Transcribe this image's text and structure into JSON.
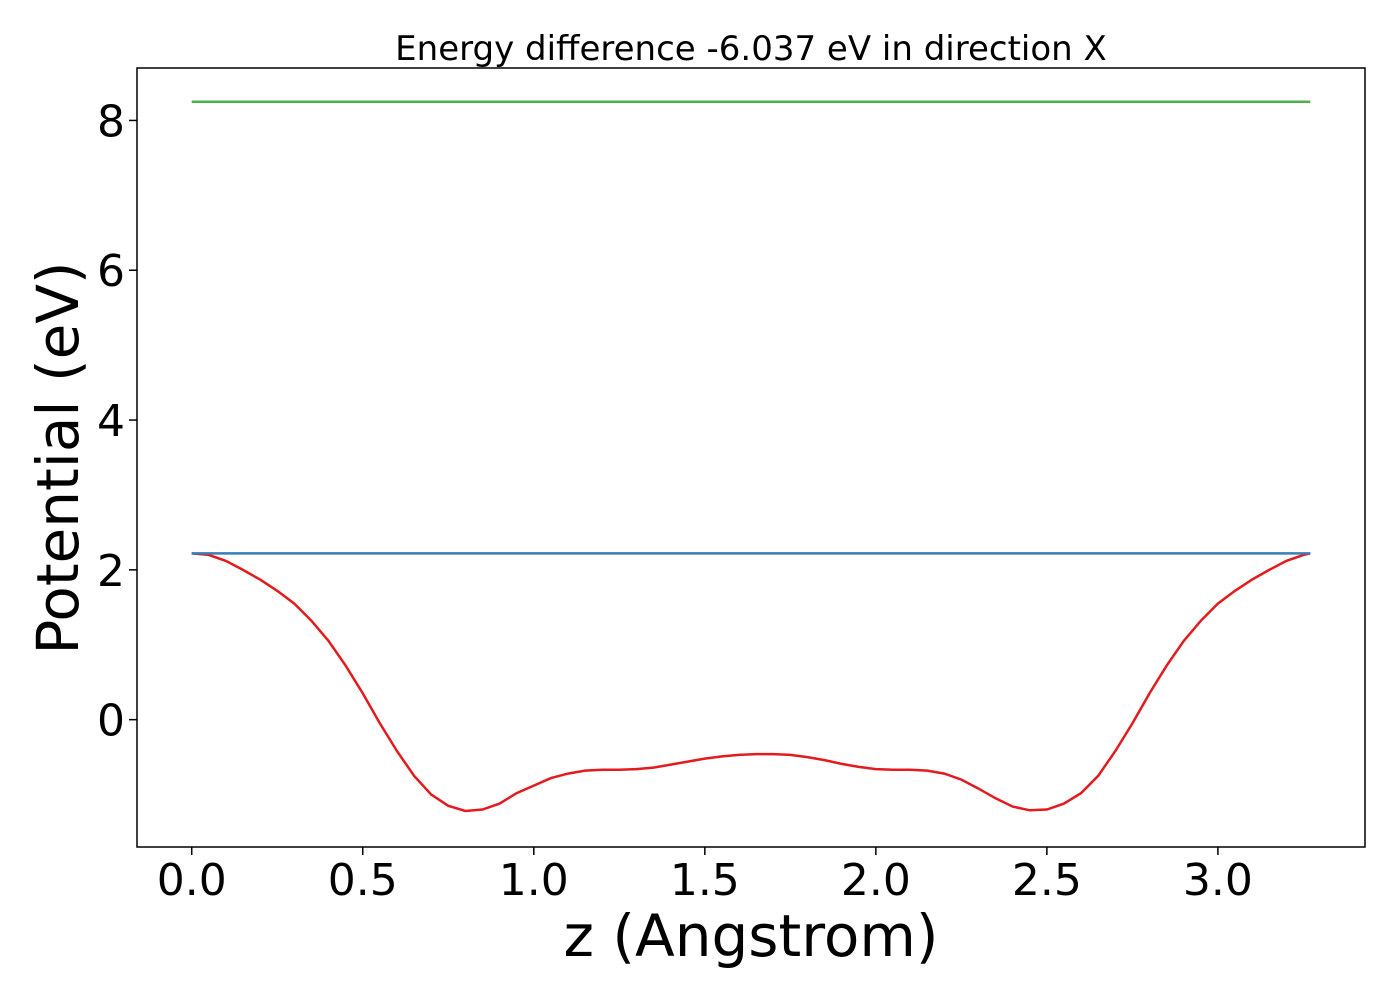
{
  "chart_data": {
    "type": "line",
    "title": "Energy difference -6.037 eV in direction X",
    "xlabel": "z (Angstrom)",
    "ylabel": "Potential (eV)",
    "xlim": [
      -0.16,
      3.43
    ],
    "ylim": [
      -1.7,
      8.7
    ],
    "x_ticks": [
      0.0,
      0.5,
      1.0,
      1.5,
      2.0,
      2.5,
      3.0
    ],
    "x_tick_labels": [
      "0.0",
      "0.5",
      "1.0",
      "1.5",
      "2.0",
      "2.5",
      "3.0"
    ],
    "y_ticks": [
      0,
      2,
      4,
      6,
      8
    ],
    "y_tick_labels": [
      "0",
      "2",
      "4",
      "6",
      "8"
    ],
    "grid": false,
    "series": [
      {
        "color": "#e41a1c",
        "x": [
          0.0,
          0.05,
          0.1,
          0.15,
          0.2,
          0.25,
          0.3,
          0.35,
          0.4,
          0.45,
          0.5,
          0.55,
          0.6,
          0.65,
          0.7,
          0.75,
          0.8,
          0.85,
          0.9,
          0.95,
          1.0,
          1.05,
          1.1,
          1.15,
          1.2,
          1.25,
          1.3,
          1.35,
          1.4,
          1.45,
          1.5,
          1.55,
          1.6,
          1.65,
          1.7,
          1.75,
          1.8,
          1.85,
          1.9,
          1.95,
          2.0,
          2.05,
          2.1,
          2.15,
          2.2,
          2.25,
          2.3,
          2.35,
          2.4,
          2.45,
          2.5,
          2.55,
          2.6,
          2.65,
          2.7,
          2.75,
          2.8,
          2.85,
          2.9,
          2.95,
          3.0,
          3.05,
          3.1,
          3.15,
          3.2,
          3.25,
          3.27
        ],
        "y": [
          2.22,
          2.2,
          2.12,
          2.0,
          1.87,
          1.72,
          1.55,
          1.32,
          1.05,
          0.72,
          0.35,
          -0.05,
          -0.42,
          -0.75,
          -1.0,
          -1.15,
          -1.22,
          -1.2,
          -1.12,
          -0.98,
          -0.88,
          -0.78,
          -0.72,
          -0.68,
          -0.67,
          -0.67,
          -0.66,
          -0.64,
          -0.6,
          -0.56,
          -0.52,
          -0.49,
          -0.47,
          -0.46,
          -0.46,
          -0.47,
          -0.5,
          -0.54,
          -0.59,
          -0.63,
          -0.66,
          -0.67,
          -0.67,
          -0.68,
          -0.72,
          -0.8,
          -0.92,
          -1.05,
          -1.16,
          -1.21,
          -1.2,
          -1.12,
          -0.98,
          -0.75,
          -0.42,
          -0.05,
          0.35,
          0.72,
          1.05,
          1.32,
          1.55,
          1.72,
          1.87,
          2.0,
          2.12,
          2.2,
          2.22
        ]
      },
      {
        "color": "#377eb8",
        "x": [
          0.0,
          3.27
        ],
        "y": [
          2.22,
          2.22
        ]
      },
      {
        "color": "#4daf4a",
        "x": [
          0.0,
          3.27
        ],
        "y": [
          8.25,
          8.25
        ]
      }
    ]
  }
}
